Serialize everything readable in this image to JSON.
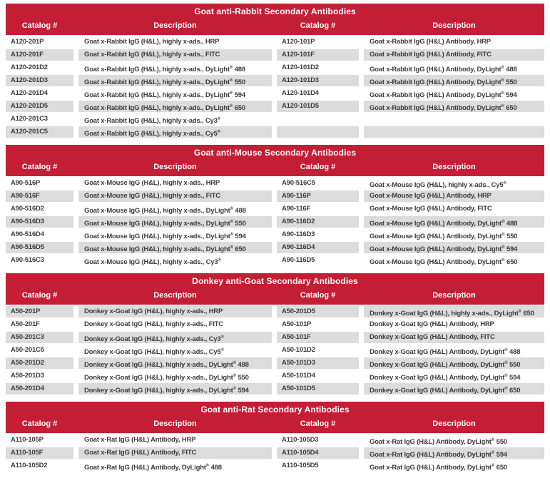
{
  "page": {
    "background": "#FFFFFF",
    "accent_red": "#C41E36",
    "stripe_gray": "#DCDCDC",
    "text_color": "#3D3D3D",
    "header_text_color": "#FFFFFF"
  },
  "column_headers": [
    "Catalog #",
    "Description",
    "Catalog #",
    "Description"
  ],
  "sections": [
    {
      "title": "Goat anti-Rabbit Secondary Antibodies",
      "first_row_shaded": false,
      "rows": [
        [
          "A120-201P",
          "Goat x-Rabbit IgG (H&L), highly x-ads., HRP",
          "A120-101P",
          "Goat x-Rabbit IgG (H&L) Antibody, HRP"
        ],
        [
          "A120-201F",
          "Goat x-Rabbit IgG (H&L), highly x-ads., FITC",
          "A120-101F",
          "Goat x-Rabbit IgG (H&L) Antibody, FITC"
        ],
        [
          "A120-201D2",
          "Goat x-Rabbit IgG (H&L), highly x-ads., DyLight® 488",
          "A120-101D2",
          "Goat x-Rabbit IgG (H&L) Antibody, DyLight® 488"
        ],
        [
          "A120-201D3",
          "Goat x-Rabbit IgG (H&L), highly x-ads., DyLight® 550",
          "A120-101D3",
          "Goat x-Rabbit IgG (H&L) Antibody, DyLight® 550"
        ],
        [
          "A120-201D4",
          "Goat x-Rabbit IgG (H&L), highly x-ads., DyLight® 594",
          "A120-101D4",
          "Goat x-Rabbit IgG (H&L) Antibody, DyLight® 594"
        ],
        [
          "A120-201D5",
          "Goat x-Rabbit IgG (H&L), highly x-ads., DyLight® 650",
          "A120-101D5",
          "Goat x-Rabbit IgG (H&L) Antibody, DyLight® 650"
        ],
        [
          "A120-201C3",
          "Goat x-Rabbit IgG (H&L), highly x-ads., Cy3®",
          "",
          ""
        ],
        [
          "A120-201C5",
          "Goat x-Rabbit IgG (H&L), highly x-ads., Cy5®",
          "",
          ""
        ]
      ]
    },
    {
      "title": "Goat anti-Mouse Secondary Antibodies",
      "first_row_shaded": false,
      "rows": [
        [
          "A90-516P",
          "Goat x-Mouse IgG (H&L), highly x-ads., HRP",
          "A90-516C5",
          "Goat x-Mouse IgG (H&L), highly x-ads., Cy5®"
        ],
        [
          "A90-516F",
          "Goat x-Mouse IgG (H&L), highly x-ads., FITC",
          "A90-116P",
          "Goat x-Mouse IgG (H&L) Antibody, HRP"
        ],
        [
          "A90-516D2",
          "Goat x-Mouse IgG (H&L), highly x-ads., DyLight® 488",
          "A90-116F",
          "Goat x-Mouse IgG (H&L) Antibody, FITC"
        ],
        [
          "A90-516D3",
          "Goat x-Mouse IgG (H&L), highly x-ads., DyLight® 550",
          "A90-116D2",
          "Goat x-Mouse IgG (H&L) Antibody, DyLight® 488"
        ],
        [
          "A90-516D4",
          "Goat x-Mouse IgG (H&L), highly x-ads., DyLight® 594",
          "A90-116D3",
          "Goat x-Mouse IgG (H&L) Antibody, DyLight® 550"
        ],
        [
          "A90-516D5",
          "Goat x-Mouse IgG (H&L), highly x-ads., DyLight® 650",
          "A90-116D4",
          "Goat x-Mouse IgG (H&L) Antibody, DyLight® 594"
        ],
        [
          "A90-516C3",
          "Goat x-Mouse IgG (H&L), highly x-ads., Cy3®",
          "A90-116D5",
          "Goat x-Mouse IgG (H&L) Antibody, DyLight® 650"
        ]
      ]
    },
    {
      "title": "Donkey anti-Goat Secondary Antibodies",
      "first_row_shaded": true,
      "rows": [
        [
          "A50-201P",
          "Donkey x-Goat IgG (H&L), highly x-ads., HRP",
          "A50-201D5",
          "Donkey x-Goat IgG (H&L), highly x-ads., DyLight® 650"
        ],
        [
          "A50-201F",
          "Donkey x-Goat IgG (H&L), highly x-ads., FITC",
          "A50-101P",
          "Donkey x-Goat IgG (H&L) Antibody, HRP"
        ],
        [
          "A50-201C3",
          "Donkey x-Goat IgG (H&L), highly x-ads., Cy3®",
          "A50-101F",
          "Donkey x-Goat IgG (H&L) Antibody, FITC"
        ],
        [
          "A50-201C5",
          "Donkey x-Goat IgG (H&L), highly x-ads., Cy5®",
          "A50-101D2",
          "Donkey x-Goat IgG (H&L) Antibody, DyLight® 488"
        ],
        [
          "A50-201D2",
          "Donkey x-Goat IgG (H&L), highly x-ads., DyLight® 488",
          "A50-101D3",
          "Donkey x-Goat IgG (H&L) Antibody, DyLight® 550"
        ],
        [
          "A50-201D3",
          "Donkey x-Goat IgG (H&L), highly x-ads., DyLight® 550",
          "A50-101D4",
          "Donkey x-Goat IgG (H&L) Antibody, DyLight® 594"
        ],
        [
          "A50-201D4",
          "Donkey x-Goat IgG (H&L), highly x-ads., DyLight® 594",
          "A50-101D5",
          "Donkey x-Goat IgG (H&L) Antibody, DyLight® 650"
        ]
      ]
    },
    {
      "title": "Goat anti-Rat Secondary Antibodies",
      "first_row_shaded": false,
      "rows": [
        [
          "A110-105P",
          "Goat x-Rat IgG (H&L) Antibody, HRP",
          "A110-105D3",
          "Goat x-Rat IgG (H&L) Antibody, DyLight® 550"
        ],
        [
          "A110-105F",
          "Goat x-Rat IgG (H&L) Antibody, FITC",
          "A110-105D4",
          "Goat x-Rat IgG (H&L) Antibody, DyLight® 594"
        ],
        [
          "A110-105D2",
          "Goat x-Rat IgG (H&L) Antibody, DyLight® 488",
          "A110-105D5",
          "Goat x-Rat IgG (H&L) Antibody, DyLight® 650"
        ]
      ]
    }
  ]
}
